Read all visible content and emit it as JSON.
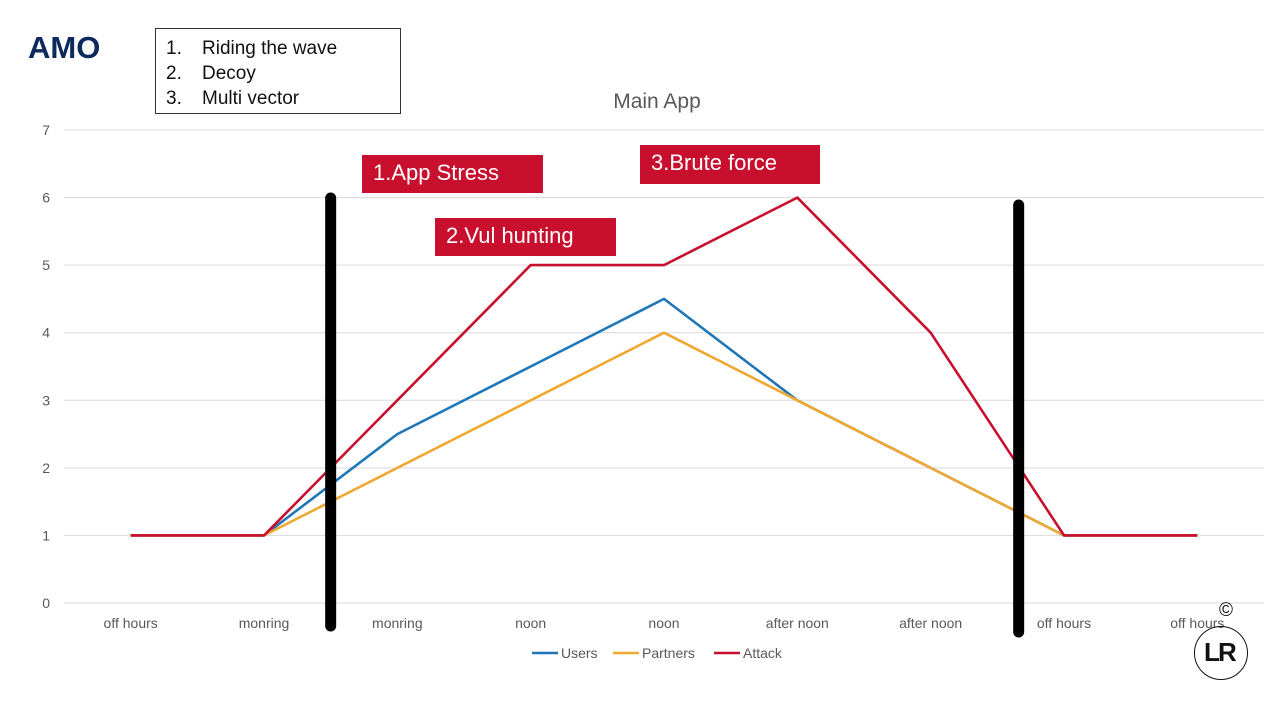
{
  "brand": "AMO",
  "techniques": [
    {
      "num": "1.",
      "label": "Riding the wave"
    },
    {
      "num": "2.",
      "label": "Decoy"
    },
    {
      "num": "3.",
      "label": "Multi vector"
    }
  ],
  "chart_data": {
    "type": "line",
    "title": "Main App",
    "categories": [
      "off hours",
      "monring",
      "monring",
      "noon",
      "noon",
      "after noon",
      "after noon",
      "off hours",
      "off hours"
    ],
    "series": [
      {
        "name": "Users",
        "color": "#1f77b8",
        "values": [
          1,
          1,
          2.5,
          3.5,
          4.5,
          3,
          2,
          1,
          1
        ]
      },
      {
        "name": "Partners",
        "color": "#f0a830",
        "values": [
          1,
          1,
          2,
          3,
          4,
          3,
          2,
          1,
          1
        ]
      },
      {
        "name": "Attack",
        "color": "#c8102e",
        "values": [
          1,
          1,
          3,
          5,
          5,
          6,
          4,
          1,
          1
        ]
      }
    ],
    "ylim": [
      0,
      7
    ],
    "yticks": [
      0,
      1,
      2,
      3,
      4,
      5,
      6,
      7
    ],
    "grid": true,
    "legend": "bottom",
    "phase_dividers": [
      1.5,
      6.66
    ],
    "annotations": [
      "1.App Stress",
      "2.Vul hunting",
      "3.Brute force"
    ]
  },
  "copyright": "©",
  "logo": {
    "left": "L",
    "right": "R"
  }
}
